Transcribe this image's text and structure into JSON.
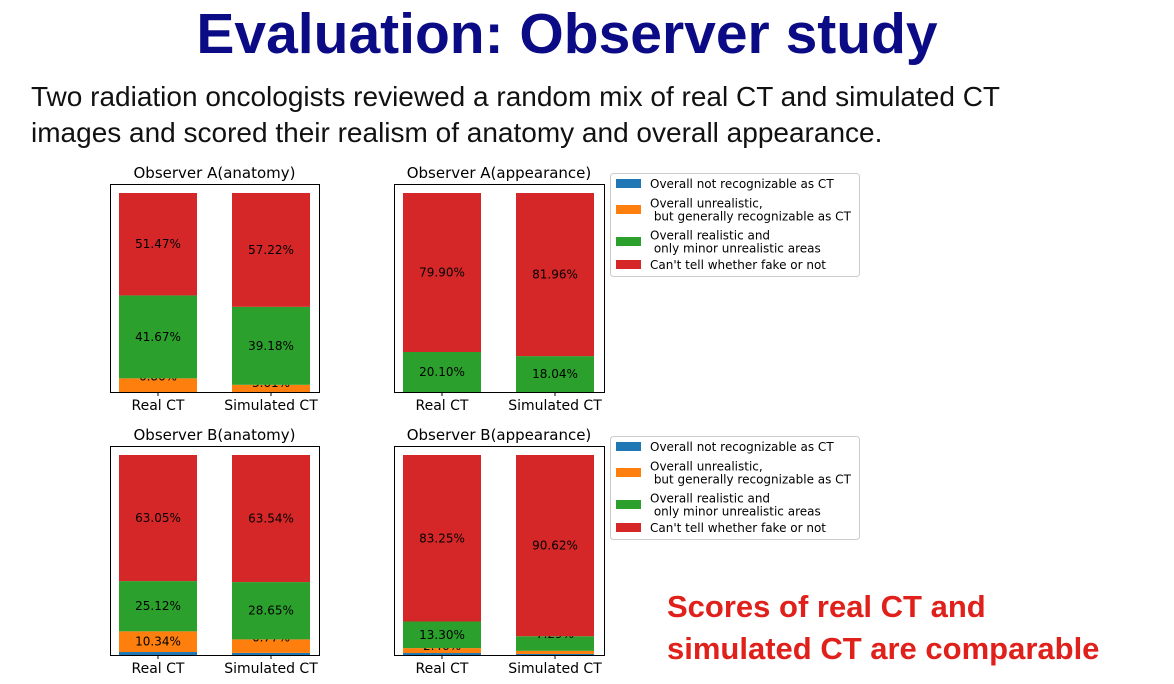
{
  "slide": {
    "title": "Evaluation: Observer study",
    "body_lines": [
      "Two radiation oncologists reviewed a random mix of real CT and simulated CT",
      "images and scored their realism of anatomy and overall appearance."
    ],
    "conclusion_lines": [
      "Scores of real CT and",
      "simulated CT are comparable"
    ]
  },
  "colors": {
    "title": "#0b0b86",
    "conclusion": "#e0201b",
    "not_recognizable": "#1f77b4",
    "unrealistic": "#ff7f0e",
    "minor_unrealistic": "#2ca02c",
    "cant_tell": "#d62728"
  },
  "chart_data": [
    {
      "type": "bar",
      "stacked": true,
      "title": "Observer A(anatomy)",
      "categories": [
        "Real CT",
        "Simulated CT"
      ],
      "ylim": [
        0,
        100
      ],
      "grid": false,
      "series": [
        {
          "name": "Overall not recognizable as CT",
          "values": [
            0,
            0
          ],
          "labels": [
            "",
            ""
          ]
        },
        {
          "name": "Overall unrealistic,\n but generally recognizable as CT",
          "values": [
            6.86,
            3.61
          ],
          "labels": [
            "6.86%",
            "3.61%"
          ]
        },
        {
          "name": "Overall realistic and\n only minor unrealistic areas",
          "values": [
            41.67,
            39.18
          ],
          "labels": [
            "41.67%",
            "39.18%"
          ]
        },
        {
          "name": "Can't tell whether fake or not",
          "values": [
            51.47,
            57.22
          ],
          "labels": [
            "51.47%",
            "57.22%"
          ]
        }
      ]
    },
    {
      "type": "bar",
      "stacked": true,
      "title": "Observer A(appearance)",
      "categories": [
        "Real CT",
        "Simulated CT"
      ],
      "ylim": [
        0,
        100
      ],
      "grid": false,
      "legend": "right",
      "series": [
        {
          "name": "Overall not recognizable as CT",
          "values": [
            0,
            0
          ],
          "labels": [
            "",
            ""
          ]
        },
        {
          "name": "Overall unrealistic,\n but generally recognizable as CT",
          "values": [
            0,
            0
          ],
          "labels": [
            "",
            ""
          ]
        },
        {
          "name": "Overall realistic and\n only minor unrealistic areas",
          "values": [
            20.1,
            18.04
          ],
          "labels": [
            "20.10%",
            "18.04%"
          ]
        },
        {
          "name": "Can't tell whether fake or not",
          "values": [
            79.9,
            81.96
          ],
          "labels": [
            "79.90%",
            "81.96%"
          ]
        }
      ]
    },
    {
      "type": "bar",
      "stacked": true,
      "title": "Observer B(anatomy)",
      "categories": [
        "Real CT",
        "Simulated CT"
      ],
      "ylim": [
        0,
        100
      ],
      "grid": false,
      "series": [
        {
          "name": "Overall not recognizable as CT",
          "values": [
            1.49,
            1.04
          ],
          "labels": [
            "",
            ""
          ]
        },
        {
          "name": "Overall unrealistic,\n but generally recognizable as CT",
          "values": [
            10.34,
            6.77
          ],
          "labels": [
            "10.34%",
            "6.77%"
          ]
        },
        {
          "name": "Overall realistic and\n only minor unrealistic areas",
          "values": [
            25.12,
            28.65
          ],
          "labels": [
            "25.12%",
            "28.65%"
          ]
        },
        {
          "name": "Can't tell whether fake or not",
          "values": [
            63.05,
            63.54
          ],
          "labels": [
            "63.05%",
            "63.54%"
          ]
        }
      ]
    },
    {
      "type": "bar",
      "stacked": true,
      "title": "Observer B(appearance)",
      "categories": [
        "Real CT",
        "Simulated CT"
      ],
      "ylim": [
        0,
        100
      ],
      "grid": false,
      "legend": "right",
      "series": [
        {
          "name": "Overall not recognizable as CT",
          "values": [
            0.99,
            0.52
          ],
          "labels": [
            "",
            ""
          ]
        },
        {
          "name": "Overall unrealistic,\n but generally recognizable as CT",
          "values": [
            2.46,
            1.57
          ],
          "labels": [
            "2.46%",
            ""
          ]
        },
        {
          "name": "Overall realistic and\n only minor unrealistic areas",
          "values": [
            13.3,
            7.29
          ],
          "labels": [
            "13.30%",
            "7.29%"
          ]
        },
        {
          "name": "Can't tell whether fake or not",
          "values": [
            83.25,
            90.62
          ],
          "labels": [
            "83.25%",
            "90.62%"
          ]
        }
      ]
    }
  ]
}
